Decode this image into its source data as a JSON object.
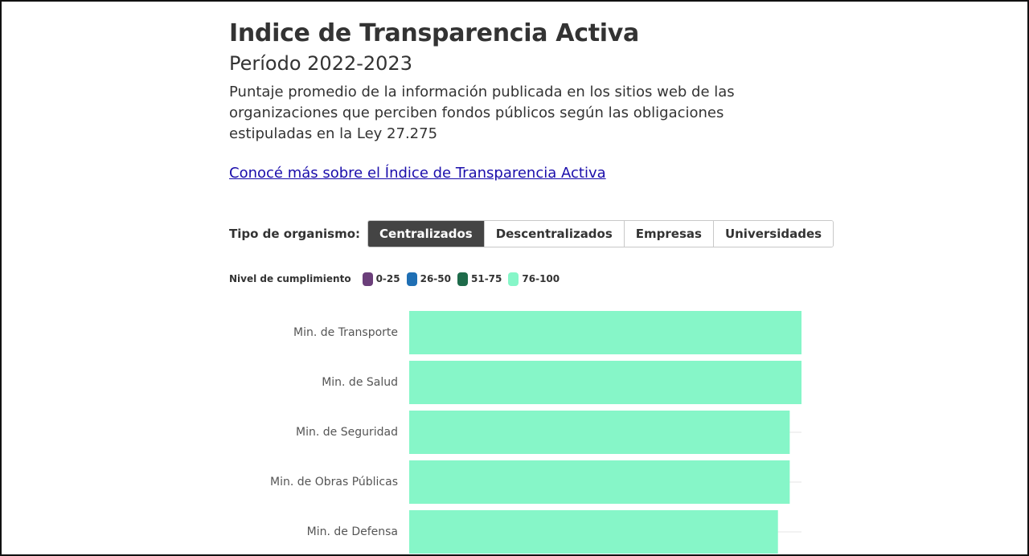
{
  "header": {
    "title": "Indice de Transparencia Activa",
    "subtitle": "Período 2022-2023",
    "description": "Puntaje promedio de la información publicada en los sitios web de las organizaciones que perciben fondos públicos según las obligaciones estipuladas en la Ley 27.275",
    "link_text": "Conocé más sobre el Índice de Transparencia Activa"
  },
  "filter": {
    "label": "Tipo de organismo:",
    "options": [
      "Centralizados",
      "Descentralizados",
      "Empresas",
      "Universidades"
    ],
    "selected": "Centralizados"
  },
  "legend": {
    "title": "Nivel de cumplimiento",
    "items": [
      {
        "label": "0-25",
        "color": "#6b3f7a"
      },
      {
        "label": "26-50",
        "color": "#1f6fb4"
      },
      {
        "label": "51-75",
        "color": "#1e6b4a"
      },
      {
        "label": "76-100",
        "color": "#86f6c8"
      }
    ]
  },
  "chart_data": {
    "type": "bar",
    "orientation": "horizontal",
    "categories": [
      "Min. de Transporte",
      "Min. de Salud",
      "Min. de Seguridad",
      "Min. de Obras Públicas",
      "Min. de Defensa"
    ],
    "values": [
      100,
      100,
      97,
      97,
      94
    ],
    "xlim": [
      0,
      100
    ],
    "bar_color": "#86f6c8",
    "grid": true,
    "legend_placement": "top-left"
  }
}
